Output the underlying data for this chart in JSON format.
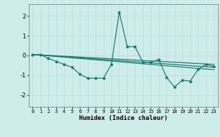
{
  "title": "",
  "xlabel": "Humidex (Indice chaleur)",
  "ylabel": "",
  "bg_color": "#ceecea",
  "grid_color": "#b8dedd",
  "line_color": "#1a7a6e",
  "xlim": [
    -0.5,
    23.5
  ],
  "ylim": [
    -2.6,
    2.6
  ],
  "xticks": [
    0,
    1,
    2,
    3,
    4,
    5,
    6,
    7,
    8,
    9,
    10,
    11,
    12,
    13,
    14,
    15,
    16,
    17,
    18,
    19,
    20,
    21,
    22,
    23
  ],
  "yticks": [
    -2,
    -1,
    0,
    1,
    2
  ],
  "series": {
    "main": {
      "x": [
        0,
        1,
        2,
        3,
        4,
        5,
        6,
        7,
        8,
        9,
        10,
        11,
        12,
        13,
        14,
        15,
        16,
        17,
        18,
        19,
        20,
        21,
        22,
        23
      ],
      "y": [
        0.05,
        0.05,
        -0.15,
        -0.3,
        -0.45,
        -0.6,
        -0.95,
        -1.15,
        -1.15,
        -1.15,
        -0.45,
        2.2,
        0.45,
        0.45,
        -0.35,
        -0.35,
        -0.2,
        -1.1,
        -1.6,
        -1.25,
        -1.3,
        -0.7,
        -0.45,
        -0.55
      ]
    },
    "trend1": {
      "x": [
        0,
        23
      ],
      "y": [
        0.05,
        -0.45
      ]
    },
    "trend2": {
      "x": [
        0,
        23
      ],
      "y": [
        0.05,
        -0.6
      ]
    },
    "trend3": {
      "x": [
        0,
        23
      ],
      "y": [
        0.05,
        -0.72
      ]
    }
  }
}
